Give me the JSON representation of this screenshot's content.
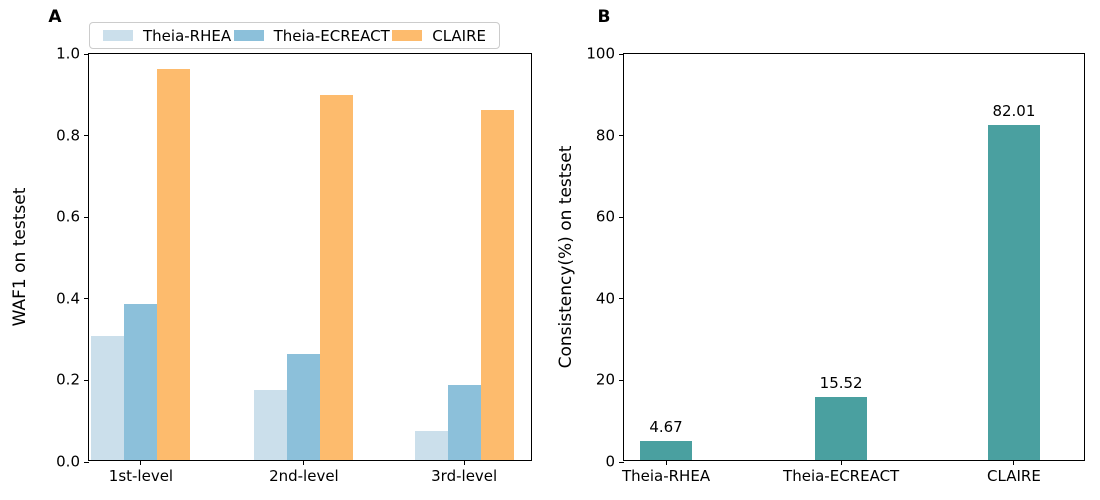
{
  "chart_data": [
    {
      "type": "bar",
      "panel_label": "A",
      "ylabel": "WAF1 on testset",
      "ylim": [
        0,
        1.0
      ],
      "ytick_values": [
        0.0,
        0.2,
        0.4,
        0.6,
        0.8,
        1.0
      ],
      "ytick_labels": [
        "0.0",
        "0.2",
        "0.4",
        "0.6",
        "0.8",
        "1.0"
      ],
      "categories": [
        "1st-level",
        "2nd-level",
        "3rd-level"
      ],
      "series": [
        {
          "name": "Theia-RHEA",
          "color": "#cbdfeb",
          "values": [
            0.305,
            0.172,
            0.071
          ]
        },
        {
          "name": "Theia-ECREACT",
          "color": "#8cc0da",
          "values": [
            0.383,
            0.26,
            0.184
          ]
        },
        {
          "name": "CLAIRE",
          "color": "#fdbb6d",
          "values": [
            0.958,
            0.895,
            0.858
          ]
        }
      ],
      "legend_position": "top",
      "grid": false
    },
    {
      "type": "bar",
      "panel_label": "B",
      "ylabel": "Consistency(%) on testset",
      "ylim": [
        0,
        100
      ],
      "ytick_values": [
        0,
        20,
        40,
        60,
        80,
        100
      ],
      "ytick_labels": [
        "0",
        "20",
        "40",
        "60",
        "80",
        "100"
      ],
      "categories": [
        "Theia-RHEA",
        "Theia-ECREACT",
        "CLAIRE"
      ],
      "values": [
        4.67,
        15.52,
        82.01
      ],
      "value_labels": [
        "4.67",
        "15.52",
        "82.01"
      ],
      "bar_color": "#4aa0a0",
      "grid": false
    }
  ],
  "legend_border_color": "#cccccc",
  "spine_color": "#000000"
}
